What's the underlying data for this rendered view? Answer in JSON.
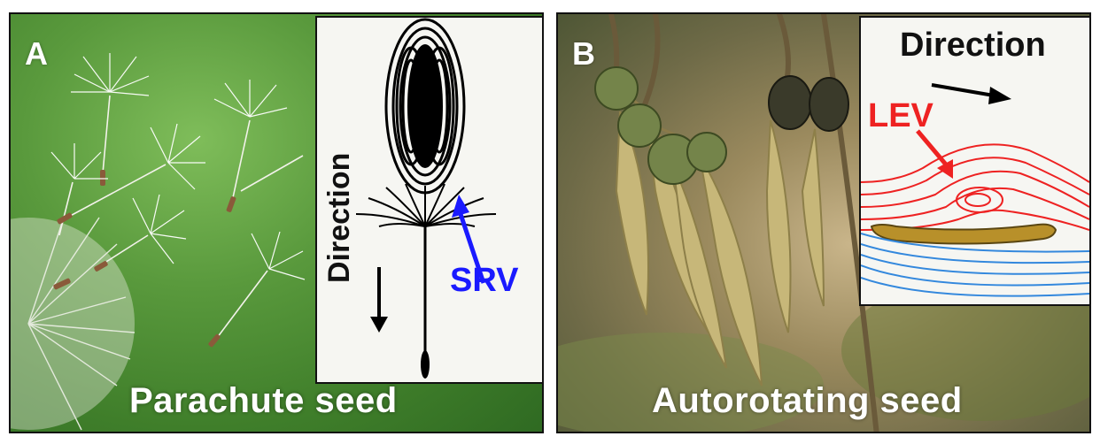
{
  "panel_a": {
    "letter": "A",
    "caption": "Parachute seed",
    "inset": {
      "direction_label": "Direction",
      "vortex_label": "SRV"
    }
  },
  "panel_b": {
    "letter": "B",
    "caption": "Autorotating seed",
    "inset": {
      "direction_label": "Direction",
      "vortex_label": "LEV"
    }
  },
  "colors": {
    "srv_arrow": "#1a1aff",
    "lev_streamlines": "#ee2222",
    "lower_streamlines": "#3388dd",
    "seed_wing": "#b8902a"
  }
}
